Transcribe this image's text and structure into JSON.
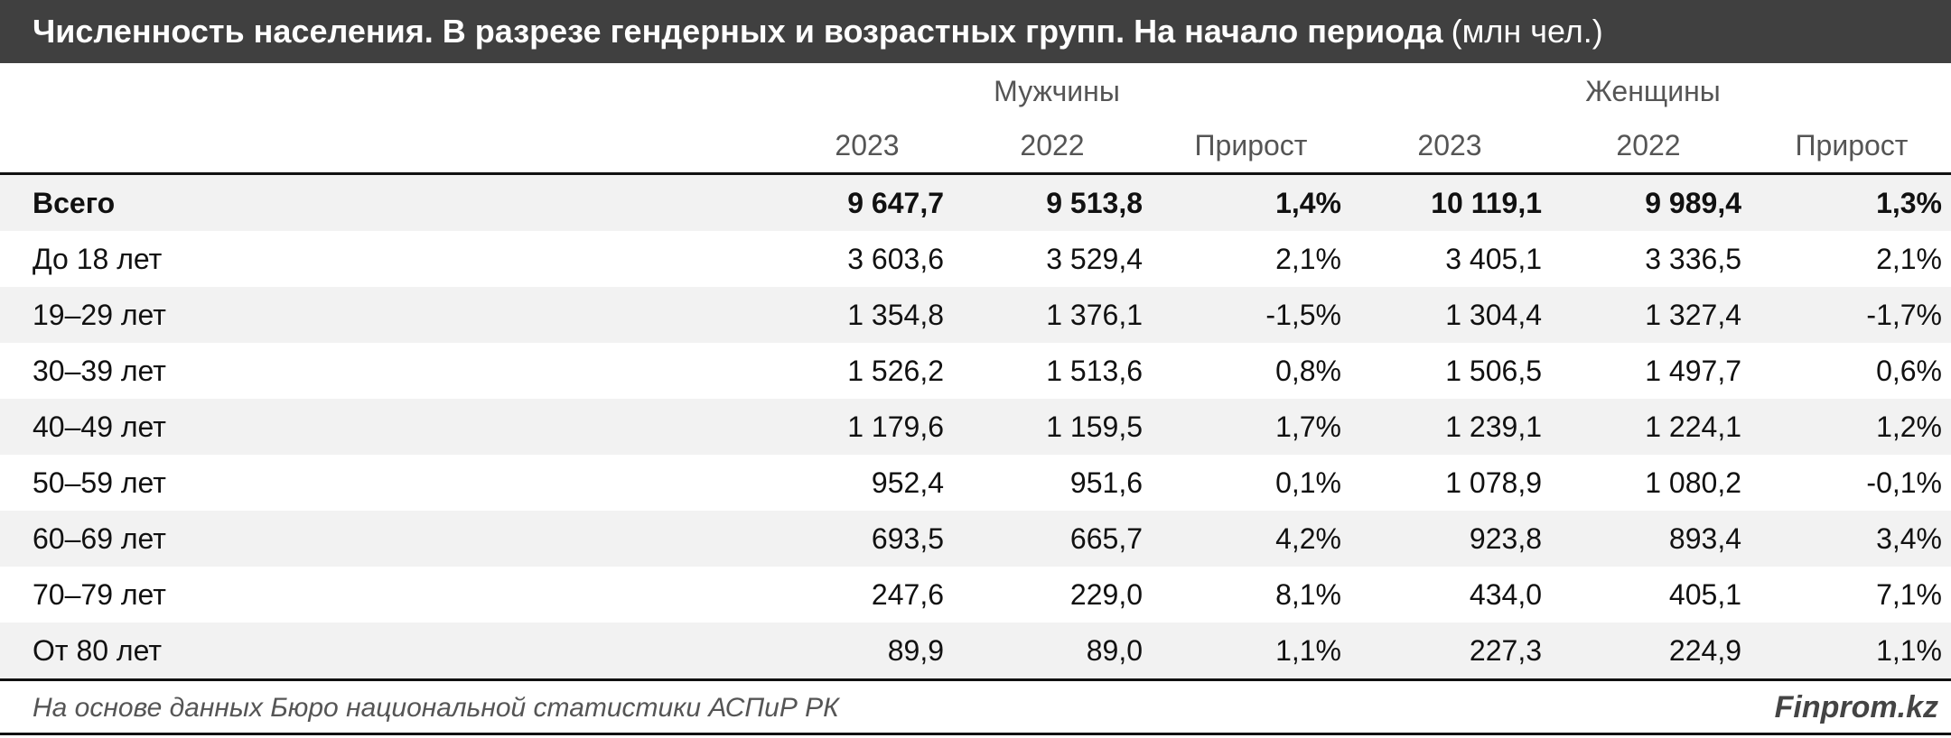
{
  "title": {
    "main": "Численность населения. В разрезе гендерных и возрастных групп. На начало периода",
    "unit": "(млн чел.)"
  },
  "header": {
    "men": "Мужчины",
    "women": "Женщины",
    "year_2023": "2023",
    "year_2022": "2022",
    "growth": "Прирост"
  },
  "rows": [
    {
      "label": "Всего",
      "m2023": "9 647,7",
      "m2022": "9 513,8",
      "mgr": "1,4%",
      "w2023": "10 119,1",
      "w2022": "9 989,4",
      "wgr": "1,3%"
    },
    {
      "label": "До 18 лет",
      "m2023": "3 603,6",
      "m2022": "3 529,4",
      "mgr": "2,1%",
      "w2023": "3 405,1",
      "w2022": "3 336,5",
      "wgr": "2,1%"
    },
    {
      "label": "19–29 лет",
      "m2023": "1 354,8",
      "m2022": "1 376,1",
      "mgr": "-1,5%",
      "w2023": "1 304,4",
      "w2022": "1 327,4",
      "wgr": "-1,7%"
    },
    {
      "label": "30–39 лет",
      "m2023": "1 526,2",
      "m2022": "1 513,6",
      "mgr": "0,8%",
      "w2023": "1 506,5",
      "w2022": "1 497,7",
      "wgr": "0,6%"
    },
    {
      "label": "40–49 лет",
      "m2023": "1 179,6",
      "m2022": "1 159,5",
      "mgr": "1,7%",
      "w2023": "1 239,1",
      "w2022": "1 224,1",
      "wgr": "1,2%"
    },
    {
      "label": "50–59 лет",
      "m2023": "952,4",
      "m2022": "951,6",
      "mgr": "0,1%",
      "w2023": "1 078,9",
      "w2022": "1 080,2",
      "wgr": "-0,1%"
    },
    {
      "label": "60–69 лет",
      "m2023": "693,5",
      "m2022": "665,7",
      "mgr": "4,2%",
      "w2023": "923,8",
      "w2022": "893,4",
      "wgr": "3,4%"
    },
    {
      "label": "70–79 лет",
      "m2023": "247,6",
      "m2022": "229,0",
      "mgr": "8,1%",
      "w2023": "434,0",
      "w2022": "405,1",
      "wgr": "7,1%"
    },
    {
      "label": "От 80 лет",
      "m2023": "89,9",
      "m2022": "89,0",
      "mgr": "1,1%",
      "w2023": "227,3",
      "w2022": "224,9",
      "wgr": "1,1%"
    }
  ],
  "footer": {
    "source": "На основе данных Бюро национальной статистики АСПиР РК",
    "brand": "Finprom.kz"
  },
  "colors": {
    "title_bg": "#404040",
    "row_shade": "#f2f2f2"
  }
}
